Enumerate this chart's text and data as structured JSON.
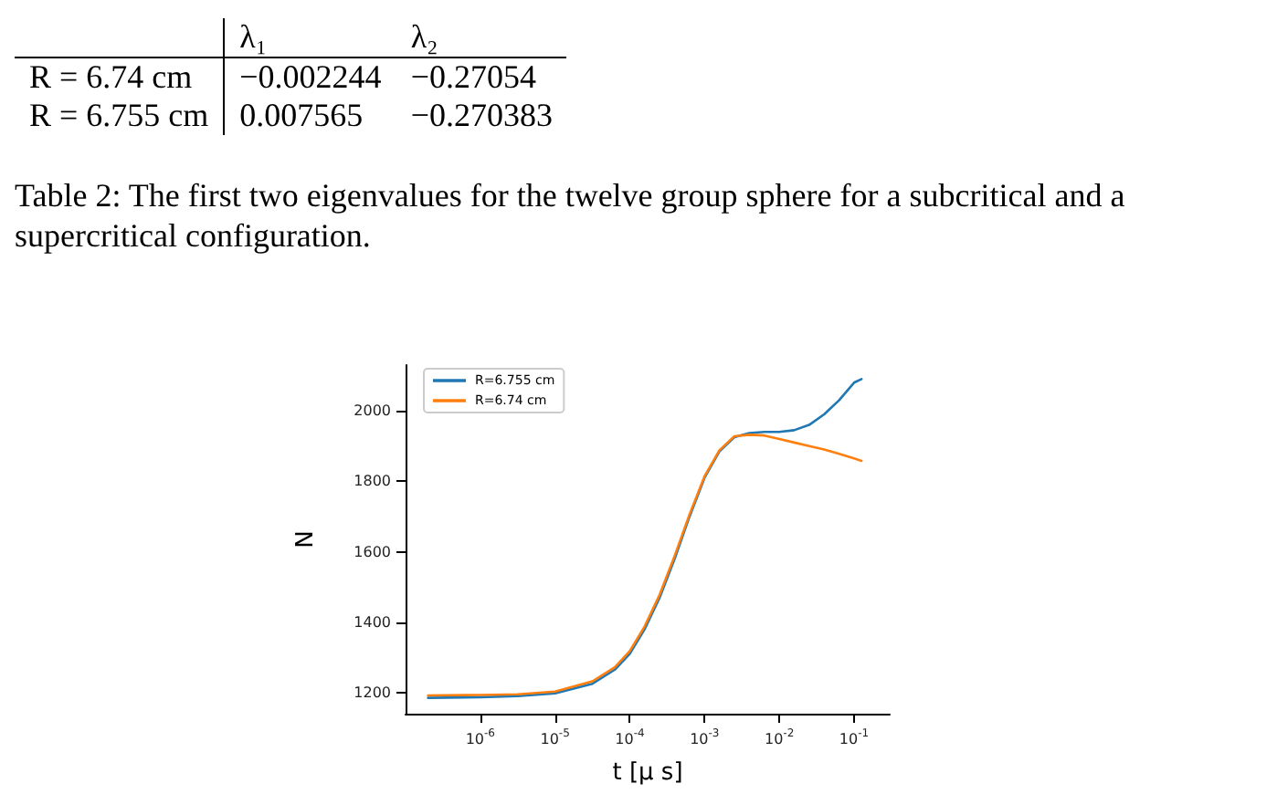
{
  "chart_data": [
    {
      "type": "other",
      "annotations": [
        "λ₁",
        "λ₂",
        "R = 6.74 cm",
        "−0.002244",
        "−0.27054",
        "R = 6.755 cm",
        "0.007565",
        "−0.270383",
        "Table 2: The first two eigenvalues for the twelve group sphere for a subcritical and a supercritical configuration."
      ]
    },
    {
      "type": "line",
      "xlabel": "t [μ s]",
      "ylabel": "N",
      "log": "x",
      "xlim": [
        1e-07,
        0.3
      ],
      "ylim": [
        1140,
        2130
      ],
      "xticks": [
        {
          "value": 1e-06,
          "label": "10$^{-6}$"
        },
        {
          "value": 1e-05,
          "label": "10$^{-5}$"
        },
        {
          "value": 0.0001,
          "label": "10$^{-4}$"
        },
        {
          "value": 0.001,
          "label": "10$^{-3}$"
        },
        {
          "value": 0.01,
          "label": "10$^{-2}$"
        },
        {
          "value": 0.1,
          "label": "10$^{-1}$"
        }
      ],
      "yticks": [
        1200,
        1400,
        1600,
        1800,
        2000
      ],
      "grid": false,
      "legend": "top left",
      "marker": "none",
      "line_style": "solid",
      "x": [
        2e-07,
        1e-06,
        3.16e-06,
        1e-05,
        3.16e-05,
        6.3e-05,
        0.0001,
        0.000158,
        0.000251,
        0.000398,
        0.00063,
        0.001,
        0.00158,
        0.00251,
        0.00398,
        0.0063,
        0.01,
        0.0158,
        0.0251,
        0.0398,
        0.063,
        0.1,
        0.126
      ],
      "series": [
        {
          "name": "R=6.755 cm",
          "color": "#1f77b4",
          "values": [
            1185,
            1187,
            1190,
            1198,
            1225,
            1265,
            1310,
            1380,
            1470,
            1580,
            1700,
            1810,
            1885,
            1925,
            1937,
            1940,
            1940,
            1945,
            1960,
            1990,
            2030,
            2080,
            2090
          ]
        },
        {
          "name": "R=6.74 cm",
          "color": "#ff7f0e",
          "values": [
            1192,
            1193,
            1195,
            1203,
            1232,
            1272,
            1318,
            1388,
            1478,
            1588,
            1706,
            1814,
            1888,
            1928,
            1932,
            1930,
            1920,
            1910,
            1900,
            1890,
            1878,
            1865,
            1858
          ]
        }
      ]
    }
  ]
}
